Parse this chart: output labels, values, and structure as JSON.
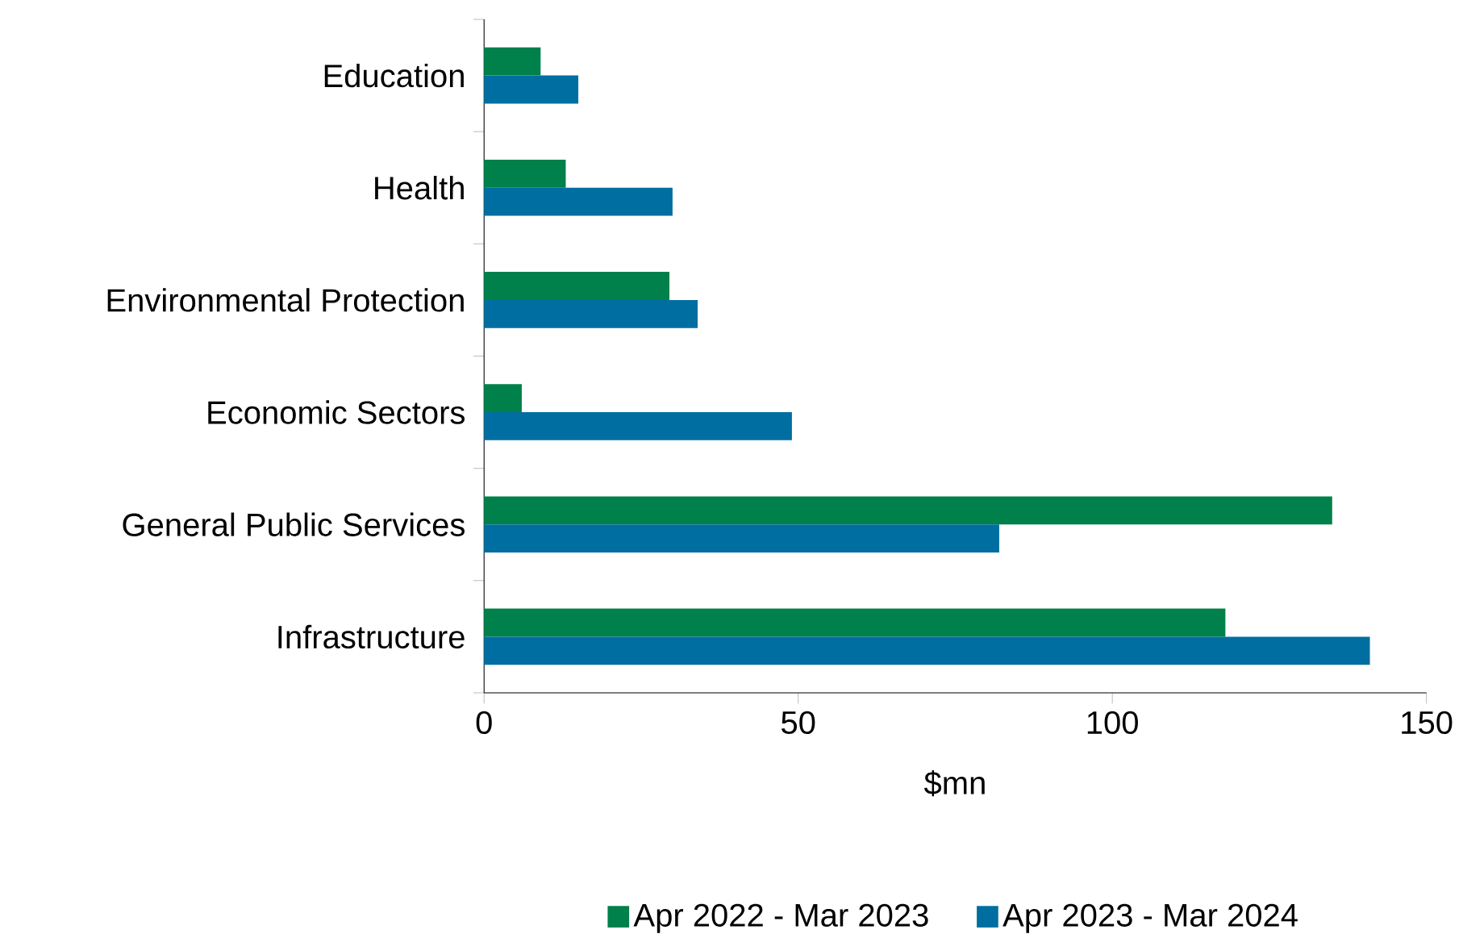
{
  "chart_data": {
    "type": "bar",
    "orientation": "horizontal",
    "xlabel": "$mn",
    "categories": [
      "Education",
      "Health",
      "Environmental Protection",
      "Economic Sectors",
      "General Public Services",
      "Infrastructure"
    ],
    "series": [
      {
        "name": "Apr 2022 - Mar 2023",
        "color": "#00804a",
        "values": [
          9,
          13,
          29.5,
          6,
          135,
          118
        ]
      },
      {
        "name": "Apr 2023 - Mar 2024",
        "color": "#006ea0",
        "values": [
          15,
          30,
          34,
          49,
          82,
          141
        ]
      }
    ],
    "xlim": [
      0,
      150
    ],
    "xticks": [
      0,
      50,
      100,
      150
    ],
    "legend": "bottom"
  }
}
